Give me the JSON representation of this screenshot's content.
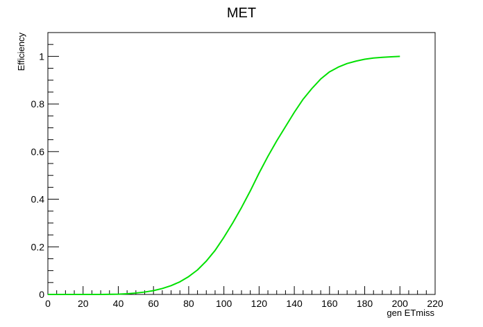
{
  "chart_data": {
    "type": "line",
    "title": "MET",
    "xlabel": "gen ETmiss",
    "ylabel": "Efficiency",
    "xlim": [
      0,
      220
    ],
    "ylim": [
      0,
      1.1
    ],
    "x_ticks": [
      0,
      20,
      40,
      60,
      80,
      100,
      120,
      140,
      160,
      180,
      200,
      220
    ],
    "x_tick_labels": [
      "0",
      "20",
      "40",
      "60",
      "80",
      "100",
      "120",
      "140",
      "160",
      "180",
      "200",
      "220"
    ],
    "y_ticks": [
      0,
      0.2,
      0.4,
      0.6,
      0.8,
      1
    ],
    "y_tick_labels": [
      "0",
      "0.2",
      "0.4",
      "0.6",
      "0.8",
      "1"
    ],
    "grid": false,
    "series": [
      {
        "color": "#00e000",
        "x": [
          0,
          10,
          20,
          30,
          40,
          45,
          50,
          55,
          60,
          65,
          70,
          75,
          80,
          85,
          90,
          95,
          100,
          105,
          110,
          115,
          120,
          125,
          130,
          135,
          140,
          145,
          150,
          155,
          160,
          165,
          170,
          175,
          180,
          185,
          190,
          195,
          200
        ],
        "y": [
          0,
          0,
          0,
          0,
          0.001,
          0.003,
          0.006,
          0.01,
          0.016,
          0.025,
          0.037,
          0.053,
          0.075,
          0.103,
          0.14,
          0.185,
          0.24,
          0.3,
          0.365,
          0.435,
          0.51,
          0.58,
          0.645,
          0.705,
          0.765,
          0.82,
          0.865,
          0.905,
          0.935,
          0.955,
          0.97,
          0.98,
          0.988,
          0.993,
          0.996,
          0.998,
          1.0
        ]
      }
    ]
  }
}
